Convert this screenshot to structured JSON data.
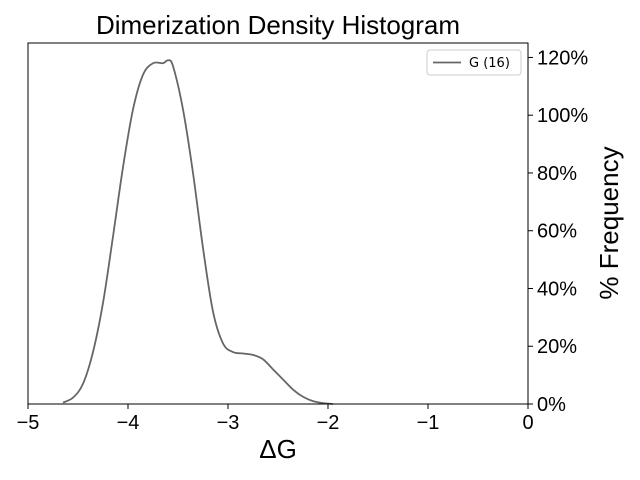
{
  "chart_data": {
    "type": "line",
    "title": "Dimerization Density Histogram",
    "xlabel": "ΔG",
    "ylabel": "% Frequency",
    "xlim": [
      -5,
      0
    ],
    "ylim": [
      0,
      125
    ],
    "x_ticks": [
      -5,
      -4,
      -3,
      -2,
      -1,
      0
    ],
    "x_tick_labels": [
      "−5",
      "−4",
      "−3",
      "−2",
      "−1",
      "0"
    ],
    "y_ticks": [
      0,
      20,
      40,
      60,
      80,
      100,
      120
    ],
    "y_tick_labels": [
      "0%",
      "20%",
      "40%",
      "60%",
      "80%",
      "100%",
      "120%"
    ],
    "y_axis_side": "right",
    "grid": false,
    "legend": {
      "placement": "top-right",
      "entries": [
        "G (16)"
      ]
    },
    "series": [
      {
        "name": "G (16)",
        "color": "#666666",
        "x": [
          -4.65,
          -4.55,
          -4.45,
          -4.35,
          -4.25,
          -4.15,
          -4.05,
          -3.95,
          -3.85,
          -3.75,
          -3.65,
          -3.6,
          -3.55,
          -3.45,
          -3.35,
          -3.25,
          -3.15,
          -3.05,
          -2.95,
          -2.85,
          -2.75,
          -2.65,
          -2.55,
          -2.45,
          -2.35,
          -2.25,
          -2.15,
          -2.05,
          -1.95
        ],
        "y": [
          0.5,
          2.2,
          7,
          18,
          35,
          58,
          82,
          102,
          114,
          118,
          118,
          119,
          117,
          102,
          80,
          54,
          32,
          21,
          18,
          17.5,
          17,
          15.5,
          12,
          8.5,
          5,
          2.5,
          1,
          0.3,
          0
        ]
      }
    ]
  }
}
